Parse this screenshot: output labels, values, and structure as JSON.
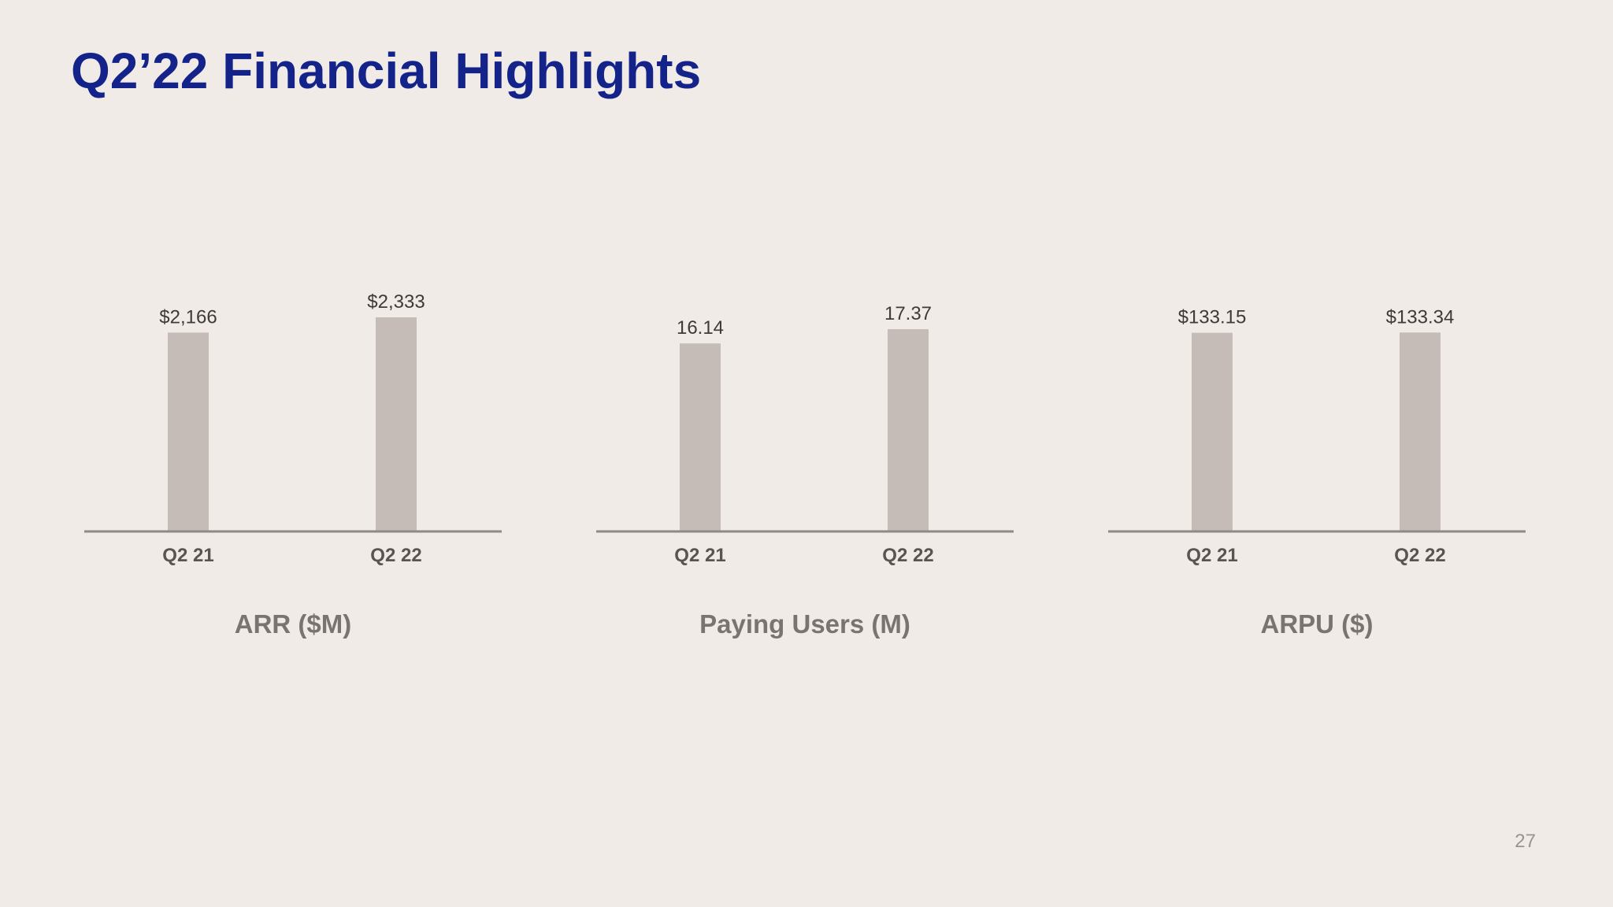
{
  "slide": {
    "title": "Q2’22 Financial Highlights",
    "page_number": "27"
  },
  "colors": {
    "title": "#14238a",
    "bar": "#c5bcb8",
    "axis": "#8f8a86",
    "background": "#f0ebe7"
  },
  "chart_data": [
    {
      "type": "bar",
      "title": "ARR ($M)",
      "categories": [
        "Q2 21",
        "Q2 22"
      ],
      "values": [
        2166,
        2333
      ],
      "value_labels": [
        "$2,166",
        "$2,333"
      ],
      "ylim": [
        0,
        2600
      ],
      "grid": false
    },
    {
      "type": "bar",
      "title": "Paying Users (M)",
      "categories": [
        "Q2 21",
        "Q2 22"
      ],
      "values": [
        16.14,
        17.37
      ],
      "value_labels": [
        "16.14",
        "17.37"
      ],
      "ylim": [
        0,
        20.5
      ],
      "grid": false
    },
    {
      "type": "bar",
      "title": "ARPU ($)",
      "categories": [
        "Q2 21",
        "Q2 22"
      ],
      "values": [
        133.15,
        133.34
      ],
      "value_labels": [
        "$133.15",
        "$133.34"
      ],
      "ylim": [
        0,
        160
      ],
      "grid": false
    }
  ]
}
